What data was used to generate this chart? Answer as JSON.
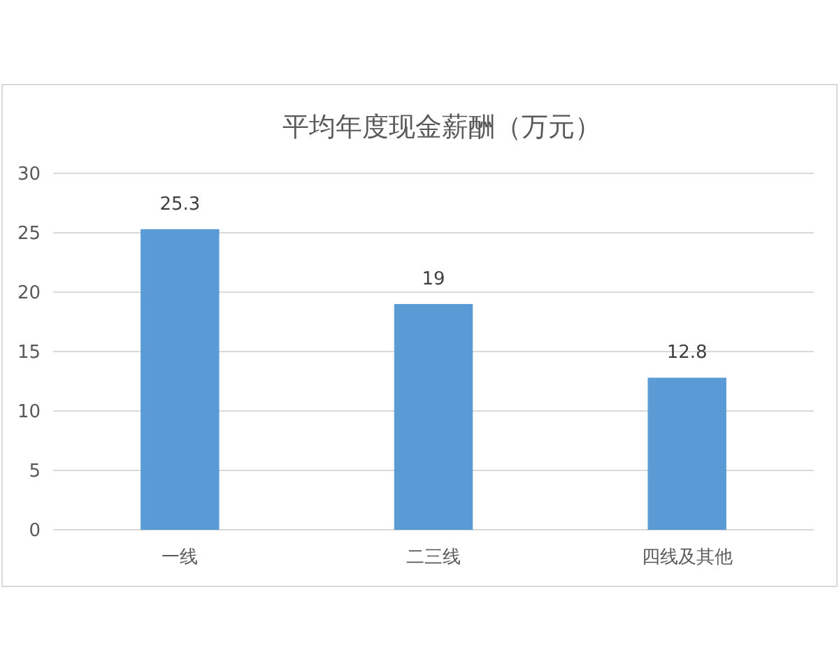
{
  "chart_data": {
    "type": "bar",
    "title": "平均年度现金薪酬（万元）",
    "categories": [
      "一线",
      "二三线",
      "四线及其他"
    ],
    "values": [
      25.3,
      19,
      12.8
    ],
    "color": "#5b9bd5",
    "ylim": [
      0,
      30
    ],
    "yticks": [
      0,
      5,
      10,
      15,
      20,
      25,
      30
    ],
    "grid": "y",
    "data_labels": true
  }
}
